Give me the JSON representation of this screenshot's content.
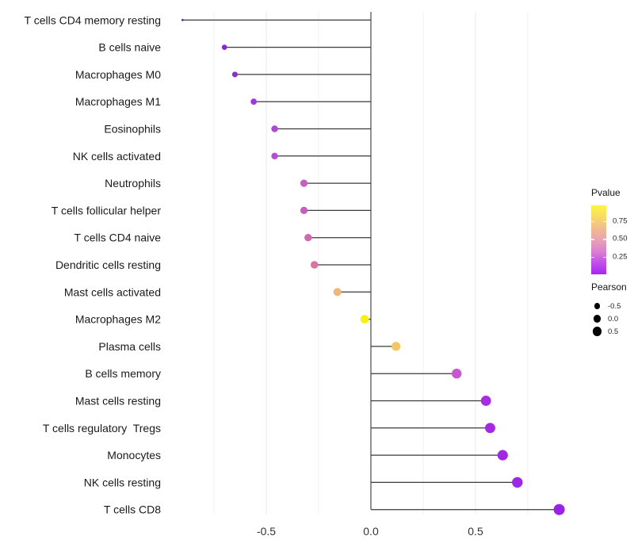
{
  "figure": {
    "background": "#ffffff",
    "title": ""
  },
  "chart_data": {
    "type": "scatter",
    "subtype": "horizontal-lollipop",
    "title": "",
    "xlabel": "",
    "ylabel": "",
    "grid": "vertical-only",
    "x_axis": {
      "range": [
        -0.97,
        1.06
      ],
      "tick_values": [
        -0.5,
        0.0,
        0.5
      ],
      "tick_labels": [
        "-0.5",
        "0.0",
        "0.5"
      ],
      "minor_gridlines": [
        -0.75,
        -0.25,
        0.25,
        0.75
      ],
      "zero_line": 0.0
    },
    "points": [
      {
        "category": "T cells CD4 memory resting",
        "pearson": -0.9,
        "pvalue_approx": 0.02,
        "color": "#8420dd"
      },
      {
        "category": "B cells naive",
        "pearson": -0.7,
        "pvalue_approx": 0.05,
        "color": "#8a26d6"
      },
      {
        "category": "Macrophages M0",
        "pearson": -0.65,
        "pvalue_approx": 0.08,
        "color": "#8e2cd4"
      },
      {
        "category": "Macrophages M1",
        "pearson": -0.56,
        "pvalue_approx": 0.12,
        "color": "#9c3ad6"
      },
      {
        "category": "Eosinophils",
        "pearson": -0.46,
        "pvalue_approx": 0.2,
        "color": "#ae48d2"
      },
      {
        "category": "NK cells activated",
        "pearson": -0.46,
        "pvalue_approx": 0.23,
        "color": "#b54dd1"
      },
      {
        "category": "Neutrophils",
        "pearson": -0.32,
        "pvalue_approx": 0.33,
        "color": "#c75fc0"
      },
      {
        "category": "T cells follicular helper",
        "pearson": -0.32,
        "pvalue_approx": 0.35,
        "color": "#c55fbc"
      },
      {
        "category": "T cells CD4 naive",
        "pearson": -0.3,
        "pvalue_approx": 0.42,
        "color": "#cf69ab"
      },
      {
        "category": "Dendritic cells resting",
        "pearson": -0.27,
        "pvalue_approx": 0.48,
        "color": "#d973a2"
      },
      {
        "category": "Mast cells activated",
        "pearson": -0.16,
        "pvalue_approx": 0.7,
        "color": "#f0b579"
      },
      {
        "category": "Macrophages M2",
        "pearson": -0.03,
        "pvalue_approx": 0.95,
        "color": "#f8f00e"
      },
      {
        "category": "Plasma cells",
        "pearson": 0.12,
        "pvalue_approx": 0.75,
        "color": "#f2c764"
      },
      {
        "category": "B cells memory",
        "pearson": 0.41,
        "pvalue_approx": 0.28,
        "color": "#c857cf"
      },
      {
        "category": "Mast cells resting",
        "pearson": 0.55,
        "pvalue_approx": 0.09,
        "color": "#a82ce2"
      },
      {
        "category": "T cells regulatory  Tregs",
        "pearson": 0.57,
        "pvalue_approx": 0.07,
        "color": "#a428e4"
      },
      {
        "category": "Monocytes",
        "pearson": 0.63,
        "pvalue_approx": 0.06,
        "color": "#a02ae4"
      },
      {
        "category": "NK cells resting",
        "pearson": 0.7,
        "pvalue_approx": 0.04,
        "color": "#9c28e6"
      },
      {
        "category": "T cells CD8",
        "pearson": 0.9,
        "pvalue_approx": 0.02,
        "color": "#9a22e8"
      }
    ],
    "legend_pvalue": {
      "title": "Pvalue",
      "tick_values": [
        0.75,
        0.5,
        0.25
      ],
      "tick_labels": [
        "0.75",
        "0.50",
        "0.25"
      ],
      "value_range": [
        0.0,
        0.97
      ],
      "gradient_top_to_bottom": [
        "#fdf640",
        "#f7da68",
        "#f0bd8e",
        "#e8a2b4",
        "#da81d0",
        "#c04eea",
        "#a726f4"
      ]
    },
    "legend_pearson": {
      "title": "Pearson",
      "entries": [
        {
          "label": "-0.5",
          "value": -0.5
        },
        {
          "label": "0.0",
          "value": 0.0
        },
        {
          "label": "0.5",
          "value": 0.5
        }
      ],
      "dot_color": "#000000"
    },
    "style": {
      "stem_color": "#3a3a3a",
      "zero_line_color": "#3a3a3a",
      "major_gridline_color": "#e9e9e9",
      "minor_gridline_color": "#f1f1f1",
      "axis_text_color": "#1a1a1a"
    }
  }
}
